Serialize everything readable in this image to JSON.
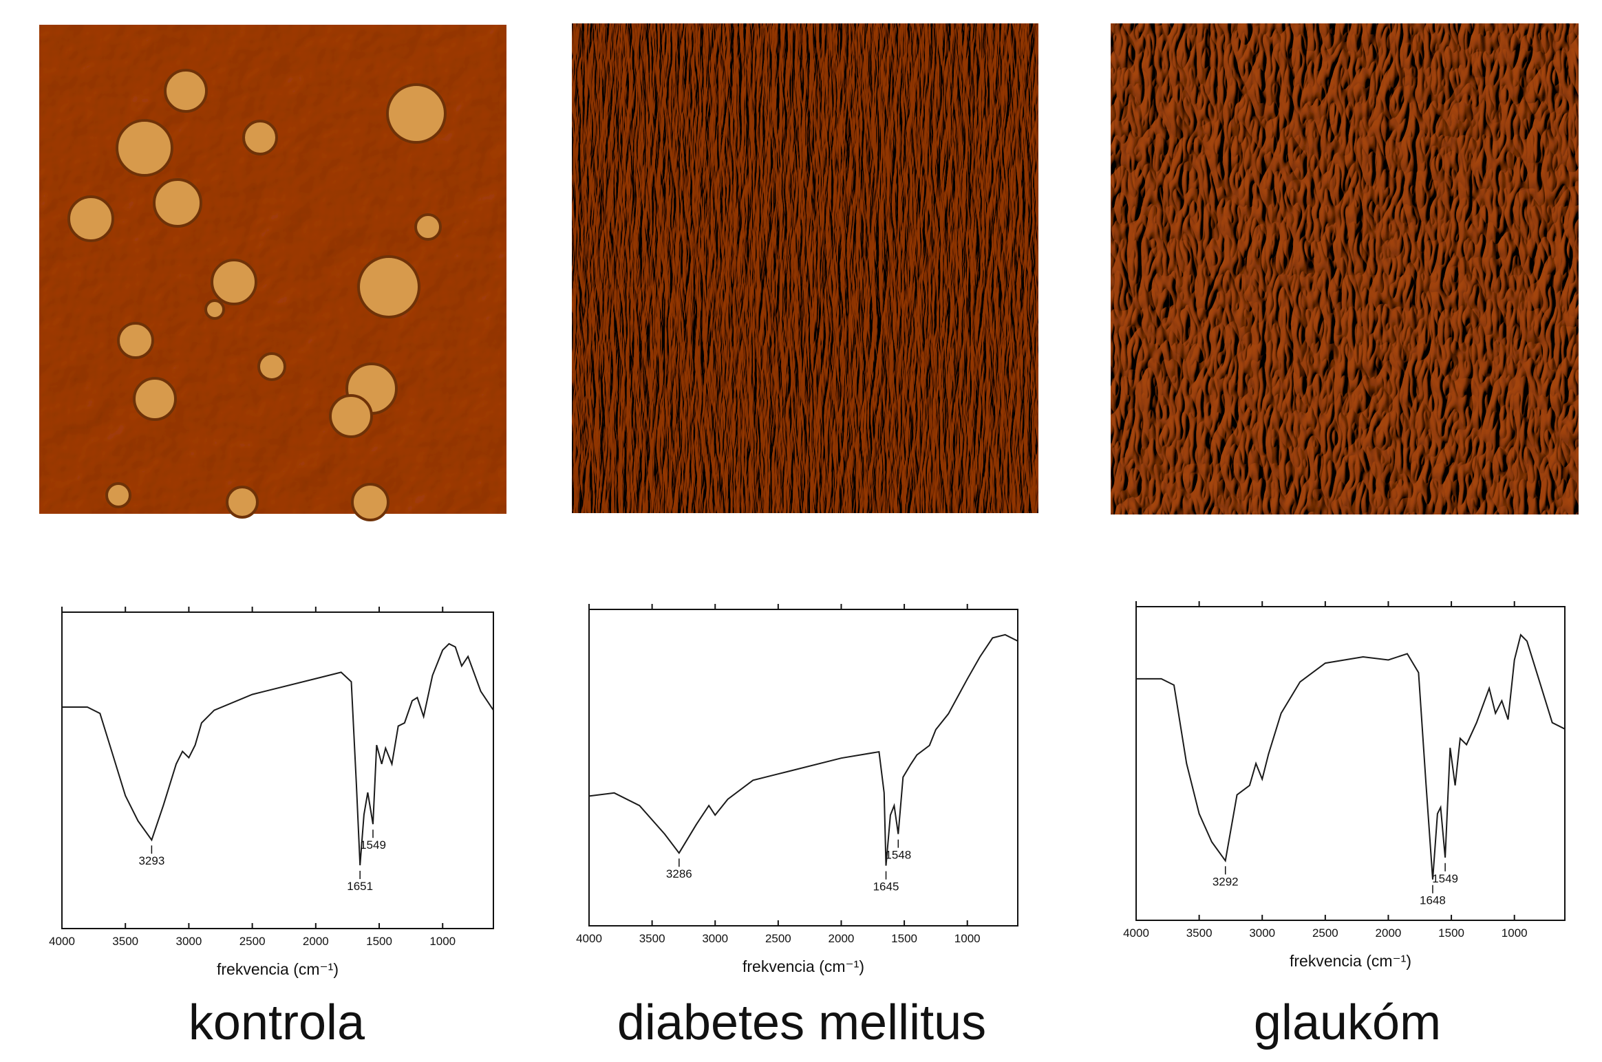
{
  "chart_data": [
    {
      "type": "line",
      "title": "kontrola",
      "x_label": "frekvencia (cm⁻¹)",
      "xlim": [
        4000,
        600
      ],
      "xticks": [
        4000,
        3500,
        3000,
        2500,
        2000,
        1500,
        1000
      ],
      "ylim": [
        0,
        100
      ],
      "x": [
        4000,
        3800,
        3700,
        3600,
        3500,
        3400,
        3293,
        3200,
        3100,
        3050,
        3000,
        2950,
        2900,
        2800,
        2500,
        2000,
        1800,
        1720,
        1680,
        1651,
        1620,
        1590,
        1549,
        1520,
        1480,
        1450,
        1400,
        1350,
        1300,
        1240,
        1200,
        1150,
        1080,
        1000,
        950,
        900,
        850,
        800,
        700,
        600
      ],
      "series": [
        {
          "color": "#1a1a1a",
          "values": [
            70,
            70,
            68,
            55,
            42,
            34,
            28,
            39,
            52,
            56,
            54,
            58,
            65,
            69,
            74,
            79,
            81,
            78,
            46,
            20,
            36,
            43,
            33,
            58,
            52,
            57,
            52,
            64,
            65,
            72,
            73,
            67,
            80,
            88,
            90,
            89,
            83,
            86,
            75,
            69
          ]
        }
      ],
      "peaks": [
        3293,
        1651,
        1549
      ]
    },
    {
      "type": "line",
      "title": "diabetes mellitus",
      "x_label": "frekvencia (cm⁻¹)",
      "xlim": [
        4000,
        600
      ],
      "xticks": [
        4000,
        3500,
        3000,
        2500,
        2000,
        1500,
        1000
      ],
      "ylim": [
        0,
        100
      ],
      "x": [
        4000,
        3800,
        3600,
        3400,
        3286,
        3150,
        3050,
        3000,
        2900,
        2700,
        2500,
        2000,
        1700,
        1660,
        1645,
        1610,
        1580,
        1548,
        1510,
        1450,
        1400,
        1300,
        1250,
        1150,
        1000,
        900,
        800,
        700,
        600
      ],
      "series": [
        {
          "color": "#1a1a1a",
          "values": [
            41,
            42,
            38,
            29,
            23,
            32,
            38,
            35,
            40,
            46,
            48,
            53,
            55,
            42,
            19,
            35,
            38,
            29,
            47,
            51,
            54,
            57,
            62,
            67,
            78,
            85,
            91,
            92,
            90
          ]
        }
      ],
      "peaks": [
        3286,
        1645,
        1548
      ]
    },
    {
      "type": "line",
      "title": "glaukóm",
      "x_label": "frekvencia (cm⁻¹)",
      "xlim": [
        4000,
        600
      ],
      "xticks": [
        4000,
        3500,
        3000,
        2500,
        2000,
        1500,
        1000
      ],
      "ylim": [
        0,
        100
      ],
      "x": [
        4000,
        3800,
        3700,
        3600,
        3500,
        3400,
        3292,
        3200,
        3100,
        3050,
        3000,
        2950,
        2850,
        2700,
        2500,
        2200,
        2000,
        1850,
        1760,
        1700,
        1648,
        1610,
        1585,
        1549,
        1510,
        1470,
        1430,
        1380,
        1300,
        1200,
        1150,
        1100,
        1050,
        1000,
        950,
        900,
        800,
        700,
        600
      ],
      "series": [
        {
          "color": "#1a1a1a",
          "values": [
            77,
            77,
            75,
            50,
            34,
            25,
            19,
            40,
            43,
            50,
            45,
            53,
            66,
            76,
            82,
            84,
            83,
            85,
            79,
            43,
            13,
            34,
            36,
            20,
            55,
            43,
            58,
            56,
            63,
            74,
            66,
            70,
            64,
            83,
            91,
            89,
            76,
            63,
            61
          ]
        }
      ],
      "peaks": [
        3292,
        1648,
        1549
      ]
    }
  ]
}
